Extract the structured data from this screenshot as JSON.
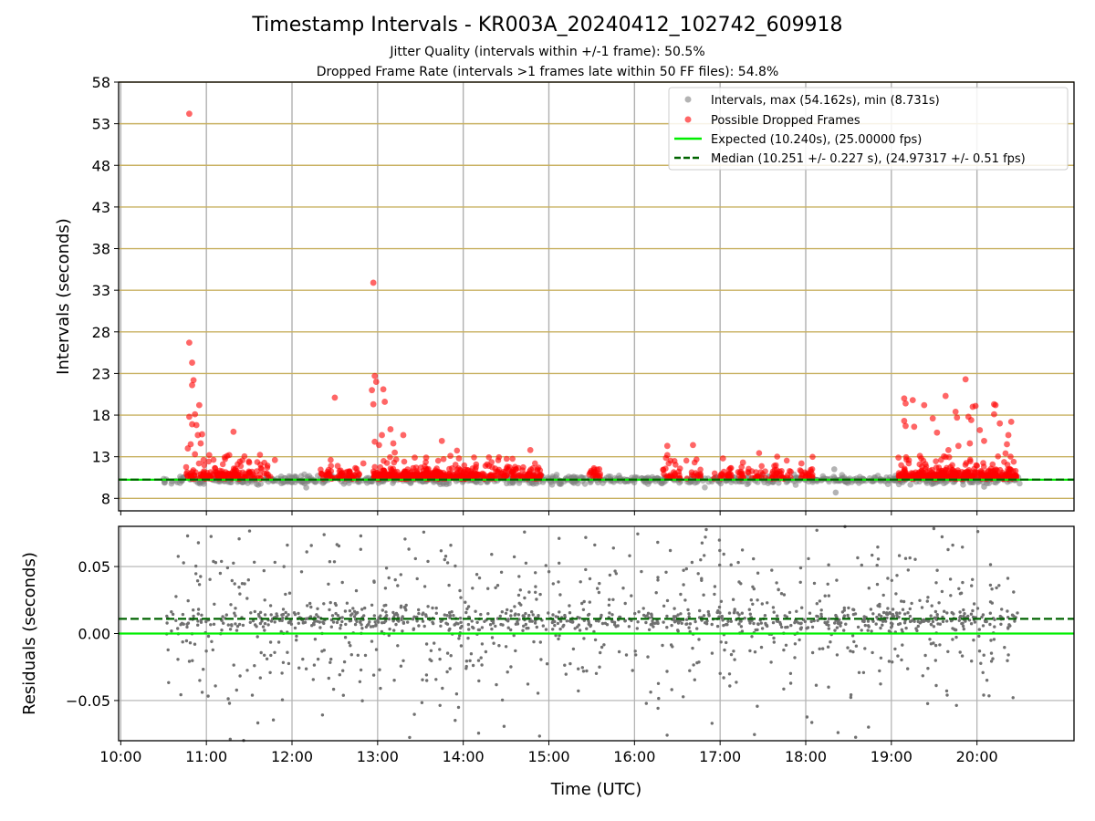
{
  "figure": {
    "title": "Timestamp Intervals - KR003A_20240412_102742_609918",
    "subtitle_1": "Jitter Quality (intervals within +/-1 frame): 50.5%",
    "subtitle_2": "Dropped Frame Rate (intervals >1 frames late within 50 FF files): 54.8%"
  },
  "colors": {
    "intervals": "#808080",
    "dropped": "#ff0000",
    "expected": "#00ee00",
    "median": "#006400",
    "hgrid_top": "#c8b060",
    "grid": "#b0b0b0"
  },
  "chart_data": [
    {
      "type": "scatter",
      "panel": "intervals",
      "xlabel": "",
      "ylabel": "Intervals (seconds)",
      "xlim": [
        "10:00",
        "21:00"
      ],
      "ylim": [
        6.5,
        58
      ],
      "yticks": [
        8,
        13,
        18,
        23,
        28,
        33,
        38,
        43,
        48,
        53,
        58
      ],
      "xticks": [
        "10:00",
        "11:00",
        "12:00",
        "13:00",
        "14:00",
        "15:00",
        "16:00",
        "17:00",
        "18:00",
        "19:00",
        "20:00"
      ],
      "grid": true,
      "legend_position": "top-right",
      "legend": [
        "Intervals, max (54.162s), min (8.731s)",
        "Possible Dropped Frames",
        "Expected (10.240s), (25.00000 fps)",
        "Median (10.251 +/- 0.227 s), (24.97317 +/- 0.51 fps)"
      ],
      "expected_line": 10.24,
      "median_line": 10.251,
      "series": [
        {
          "name": "Intervals, max (54.162s), min (8.731s)",
          "band": {
            "x_start": "10:30",
            "x_end": "20:30",
            "center": 10.25,
            "spread": 0.45
          },
          "points": [
            {
              "x": "18:21",
              "y": 8.7
            },
            {
              "x": "18:20",
              "y": 11.5
            },
            {
              "x": "20:05",
              "y": 9.4
            },
            {
              "x": "12:10",
              "y": 9.3
            }
          ]
        },
        {
          "name": "Possible Dropped Frames",
          "points": [
            {
              "x": "10:48",
              "y": 54.2
            },
            {
              "x": "10:48",
              "y": 26.7
            },
            {
              "x": "10:50",
              "y": 24.3
            },
            {
              "x": "10:51",
              "y": 22.2
            },
            {
              "x": "10:50",
              "y": 21.6
            },
            {
              "x": "10:55",
              "y": 19.2
            },
            {
              "x": "10:48",
              "y": 17.8
            },
            {
              "x": "10:52",
              "y": 18.1
            },
            {
              "x": "10:53",
              "y": 16.8
            },
            {
              "x": "10:50",
              "y": 16.9
            },
            {
              "x": "10:57",
              "y": 15.7
            },
            {
              "x": "10:54",
              "y": 15.6
            },
            {
              "x": "10:49",
              "y": 14.5
            },
            {
              "x": "10:56",
              "y": 14.6
            },
            {
              "x": "10:47",
              "y": 14.0
            },
            {
              "x": "11:02",
              "y": 13.2
            },
            {
              "x": "10:58",
              "y": 12.6
            },
            {
              "x": "10:52",
              "y": 13.3
            },
            {
              "x": "11:19",
              "y": 16.0
            },
            {
              "x": "11:16",
              "y": 13.2
            },
            {
              "x": "11:30",
              "y": 12.3
            },
            {
              "x": "11:48",
              "y": 12.6
            },
            {
              "x": "12:30",
              "y": 20.1
            },
            {
              "x": "12:32",
              "y": 11.9
            },
            {
              "x": "12:50",
              "y": 12.2
            },
            {
              "x": "12:57",
              "y": 33.9
            },
            {
              "x": "12:58",
              "y": 22.7
            },
            {
              "x": "12:59",
              "y": 22.0
            },
            {
              "x": "13:04",
              "y": 21.1
            },
            {
              "x": "12:56",
              "y": 21.0
            },
            {
              "x": "13:05",
              "y": 19.6
            },
            {
              "x": "12:57",
              "y": 19.3
            },
            {
              "x": "13:09",
              "y": 16.3
            },
            {
              "x": "13:03",
              "y": 15.6
            },
            {
              "x": "13:18",
              "y": 15.6
            },
            {
              "x": "13:01",
              "y": 14.4
            },
            {
              "x": "12:58",
              "y": 14.8
            },
            {
              "x": "13:11",
              "y": 14.6
            },
            {
              "x": "13:12",
              "y": 13.5
            },
            {
              "x": "13:26",
              "y": 12.9
            },
            {
              "x": "13:34",
              "y": 12.9
            },
            {
              "x": "13:45",
              "y": 14.9
            },
            {
              "x": "13:51",
              "y": 13.1
            },
            {
              "x": "13:57",
              "y": 12.8
            },
            {
              "x": "14:18",
              "y": 11.9
            },
            {
              "x": "14:31",
              "y": 11.8
            },
            {
              "x": "14:47",
              "y": 13.8
            },
            {
              "x": "15:32",
              "y": 11.2
            },
            {
              "x": "16:23",
              "y": 14.3
            },
            {
              "x": "16:23",
              "y": 13.2
            },
            {
              "x": "16:24",
              "y": 12.2
            },
            {
              "x": "16:41",
              "y": 14.4
            },
            {
              "x": "17:02",
              "y": 12.8
            },
            {
              "x": "17:16",
              "y": 12.3
            },
            {
              "x": "17:38",
              "y": 11.9
            },
            {
              "x": "17:57",
              "y": 12.2
            },
            {
              "x": "19:09",
              "y": 20.0
            },
            {
              "x": "19:10",
              "y": 19.4
            },
            {
              "x": "19:15",
              "y": 19.8
            },
            {
              "x": "19:09",
              "y": 17.3
            },
            {
              "x": "19:10",
              "y": 16.7
            },
            {
              "x": "19:16",
              "y": 16.6
            },
            {
              "x": "19:05",
              "y": 12.9
            },
            {
              "x": "19:23",
              "y": 19.2
            },
            {
              "x": "19:32",
              "y": 15.9
            },
            {
              "x": "19:29",
              "y": 17.6
            },
            {
              "x": "19:38",
              "y": 20.3
            },
            {
              "x": "19:45",
              "y": 18.4
            },
            {
              "x": "19:46",
              "y": 17.7
            },
            {
              "x": "19:52",
              "y": 22.3
            },
            {
              "x": "19:54",
              "y": 17.8
            },
            {
              "x": "19:56",
              "y": 17.4
            },
            {
              "x": "19:57",
              "y": 19.0
            },
            {
              "x": "19:59",
              "y": 19.1
            },
            {
              "x": "19:55",
              "y": 14.6
            },
            {
              "x": "20:02",
              "y": 16.2
            },
            {
              "x": "20:12",
              "y": 19.3
            },
            {
              "x": "20:13",
              "y": 19.2
            },
            {
              "x": "20:12",
              "y": 18.1
            },
            {
              "x": "20:16",
              "y": 17.0
            },
            {
              "x": "20:24",
              "y": 17.2
            },
            {
              "x": "20:22",
              "y": 15.6
            },
            {
              "x": "20:21",
              "y": 14.5
            },
            {
              "x": "20:20",
              "y": 13.4
            },
            {
              "x": "19:40",
              "y": 13.8
            },
            {
              "x": "19:47",
              "y": 14.3
            },
            {
              "x": "20:05",
              "y": 14.9
            },
            {
              "x": "19:20",
              "y": 13.1
            }
          ]
        }
      ]
    },
    {
      "type": "scatter",
      "panel": "residuals",
      "xlabel": "Time (UTC)",
      "ylabel": "Residuals (seconds)",
      "xlim": [
        "10:00",
        "21:00"
      ],
      "ylim": [
        -0.08,
        0.08
      ],
      "yticks": [
        -0.05,
        0.0,
        0.05
      ],
      "ytick_labels": [
        "−0.05",
        "0.00",
        "0.05"
      ],
      "xticks": [
        "10:00",
        "11:00",
        "12:00",
        "13:00",
        "14:00",
        "15:00",
        "16:00",
        "17:00",
        "18:00",
        "19:00",
        "20:00"
      ],
      "grid": true,
      "expected_line": 0.0,
      "median_line": 0.011,
      "series": [
        {
          "name": "",
          "x_start": "10:30",
          "x_end": "20:30",
          "center": 0.01,
          "spread": 0.07
        }
      ]
    }
  ]
}
